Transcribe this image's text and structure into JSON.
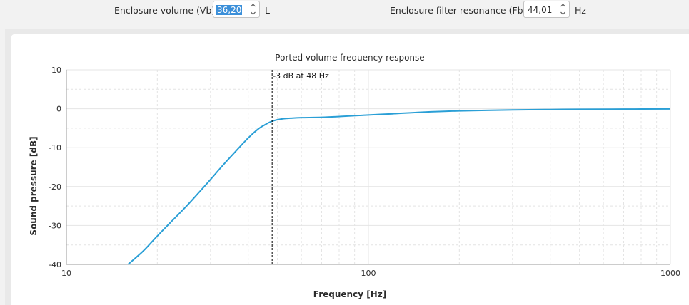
{
  "controls": {
    "enclosure_volume": {
      "label": "Enclosure volume (Vb)",
      "value": "36,20",
      "unit": "L"
    },
    "filter_resonance": {
      "label": "Enclosure filter resonance (Fb)",
      "value": "44,01",
      "unit": "Hz"
    }
  },
  "colors": {
    "series": "#2a9fd6",
    "grid": "#e4e4e4",
    "marker": "#000000",
    "selection": "#3b8fd9"
  },
  "icons": {
    "spin_up": "chevron-up-icon",
    "spin_down": "chevron-down-icon"
  },
  "chart_data": {
    "type": "line",
    "title": "Ported volume frequency response",
    "xlabel": "Frequency [Hz]",
    "ylabel": "Sound pressure [dB]",
    "xscale": "log",
    "xlim": [
      10,
      1000
    ],
    "ylim": [
      -40,
      10
    ],
    "xticks": [
      10,
      100,
      1000
    ],
    "xtick_labels": [
      "10",
      "100",
      "1000"
    ],
    "yticks": [
      10,
      0,
      -10,
      -20,
      -30,
      -40
    ],
    "ytick_labels": [
      "10",
      "0",
      "-10",
      "-20",
      "-30",
      "-40"
    ],
    "grid": true,
    "series": [
      {
        "x": [
          16,
          18,
          20,
          22,
          25,
          28,
          30,
          33,
          36,
          40,
          43,
          45,
          48,
          52,
          56,
          60,
          70,
          80,
          100,
          120,
          150,
          200,
          300,
          400,
          500,
          700,
          1000
        ],
        "y": [
          -40,
          -36.5,
          -32.7,
          -29.4,
          -25,
          -20.8,
          -18.2,
          -14.5,
          -11.3,
          -7.5,
          -5.3,
          -4.3,
          -3.2,
          -2.6,
          -2.4,
          -2.3,
          -2.2,
          -2.0,
          -1.6,
          -1.3,
          -0.9,
          -0.55,
          -0.3,
          -0.2,
          -0.15,
          -0.1,
          -0.05
        ]
      }
    ],
    "annotations": [
      {
        "type": "vline",
        "x": 48,
        "label": "-3 dB at 48 Hz"
      }
    ]
  }
}
